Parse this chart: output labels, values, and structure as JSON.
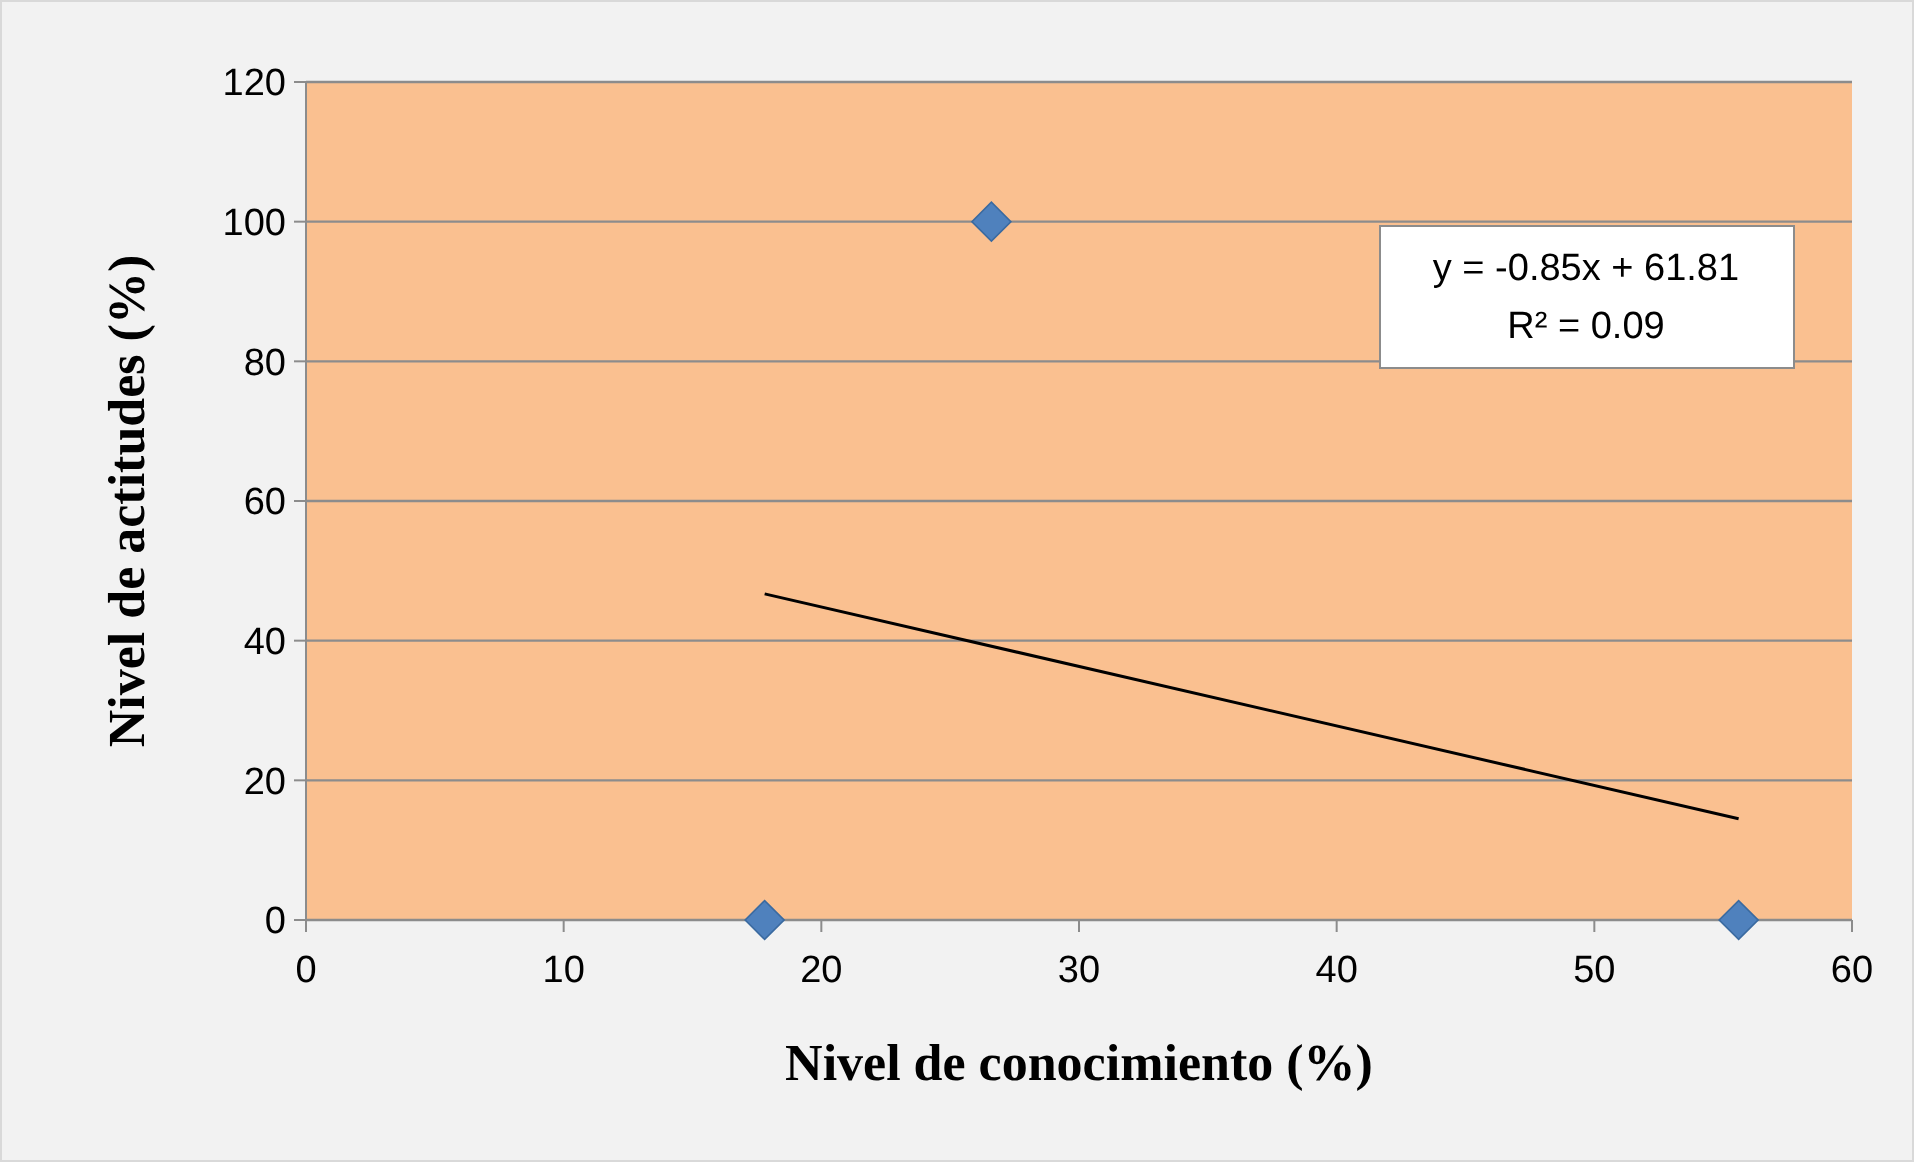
{
  "chart_data": {
    "type": "scatter",
    "xlabel": "Nivel de conocimiento (%)",
    "ylabel": "Nivel de actitudes (%)",
    "xlim": [
      0,
      60
    ],
    "xticks": [
      0,
      10,
      20,
      30,
      40,
      50,
      60
    ],
    "ylim": [
      0,
      120
    ],
    "yticks": [
      0,
      20,
      40,
      60,
      80,
      100,
      120
    ],
    "grid": "y",
    "marker": "diamond",
    "series": [
      {
        "color": "#4f81bd",
        "x": [
          17.8,
          26.6,
          55.6
        ],
        "values": [
          0,
          100,
          0
        ]
      },
      {
        "type": "line",
        "color": "#000000",
        "marker": "none",
        "x": [
          17.8,
          55.6
        ],
        "values": [
          46.7,
          14.5
        ]
      }
    ],
    "annotations": [
      "y = -0.85x + 61.81",
      "R² = 0.09"
    ]
  }
}
